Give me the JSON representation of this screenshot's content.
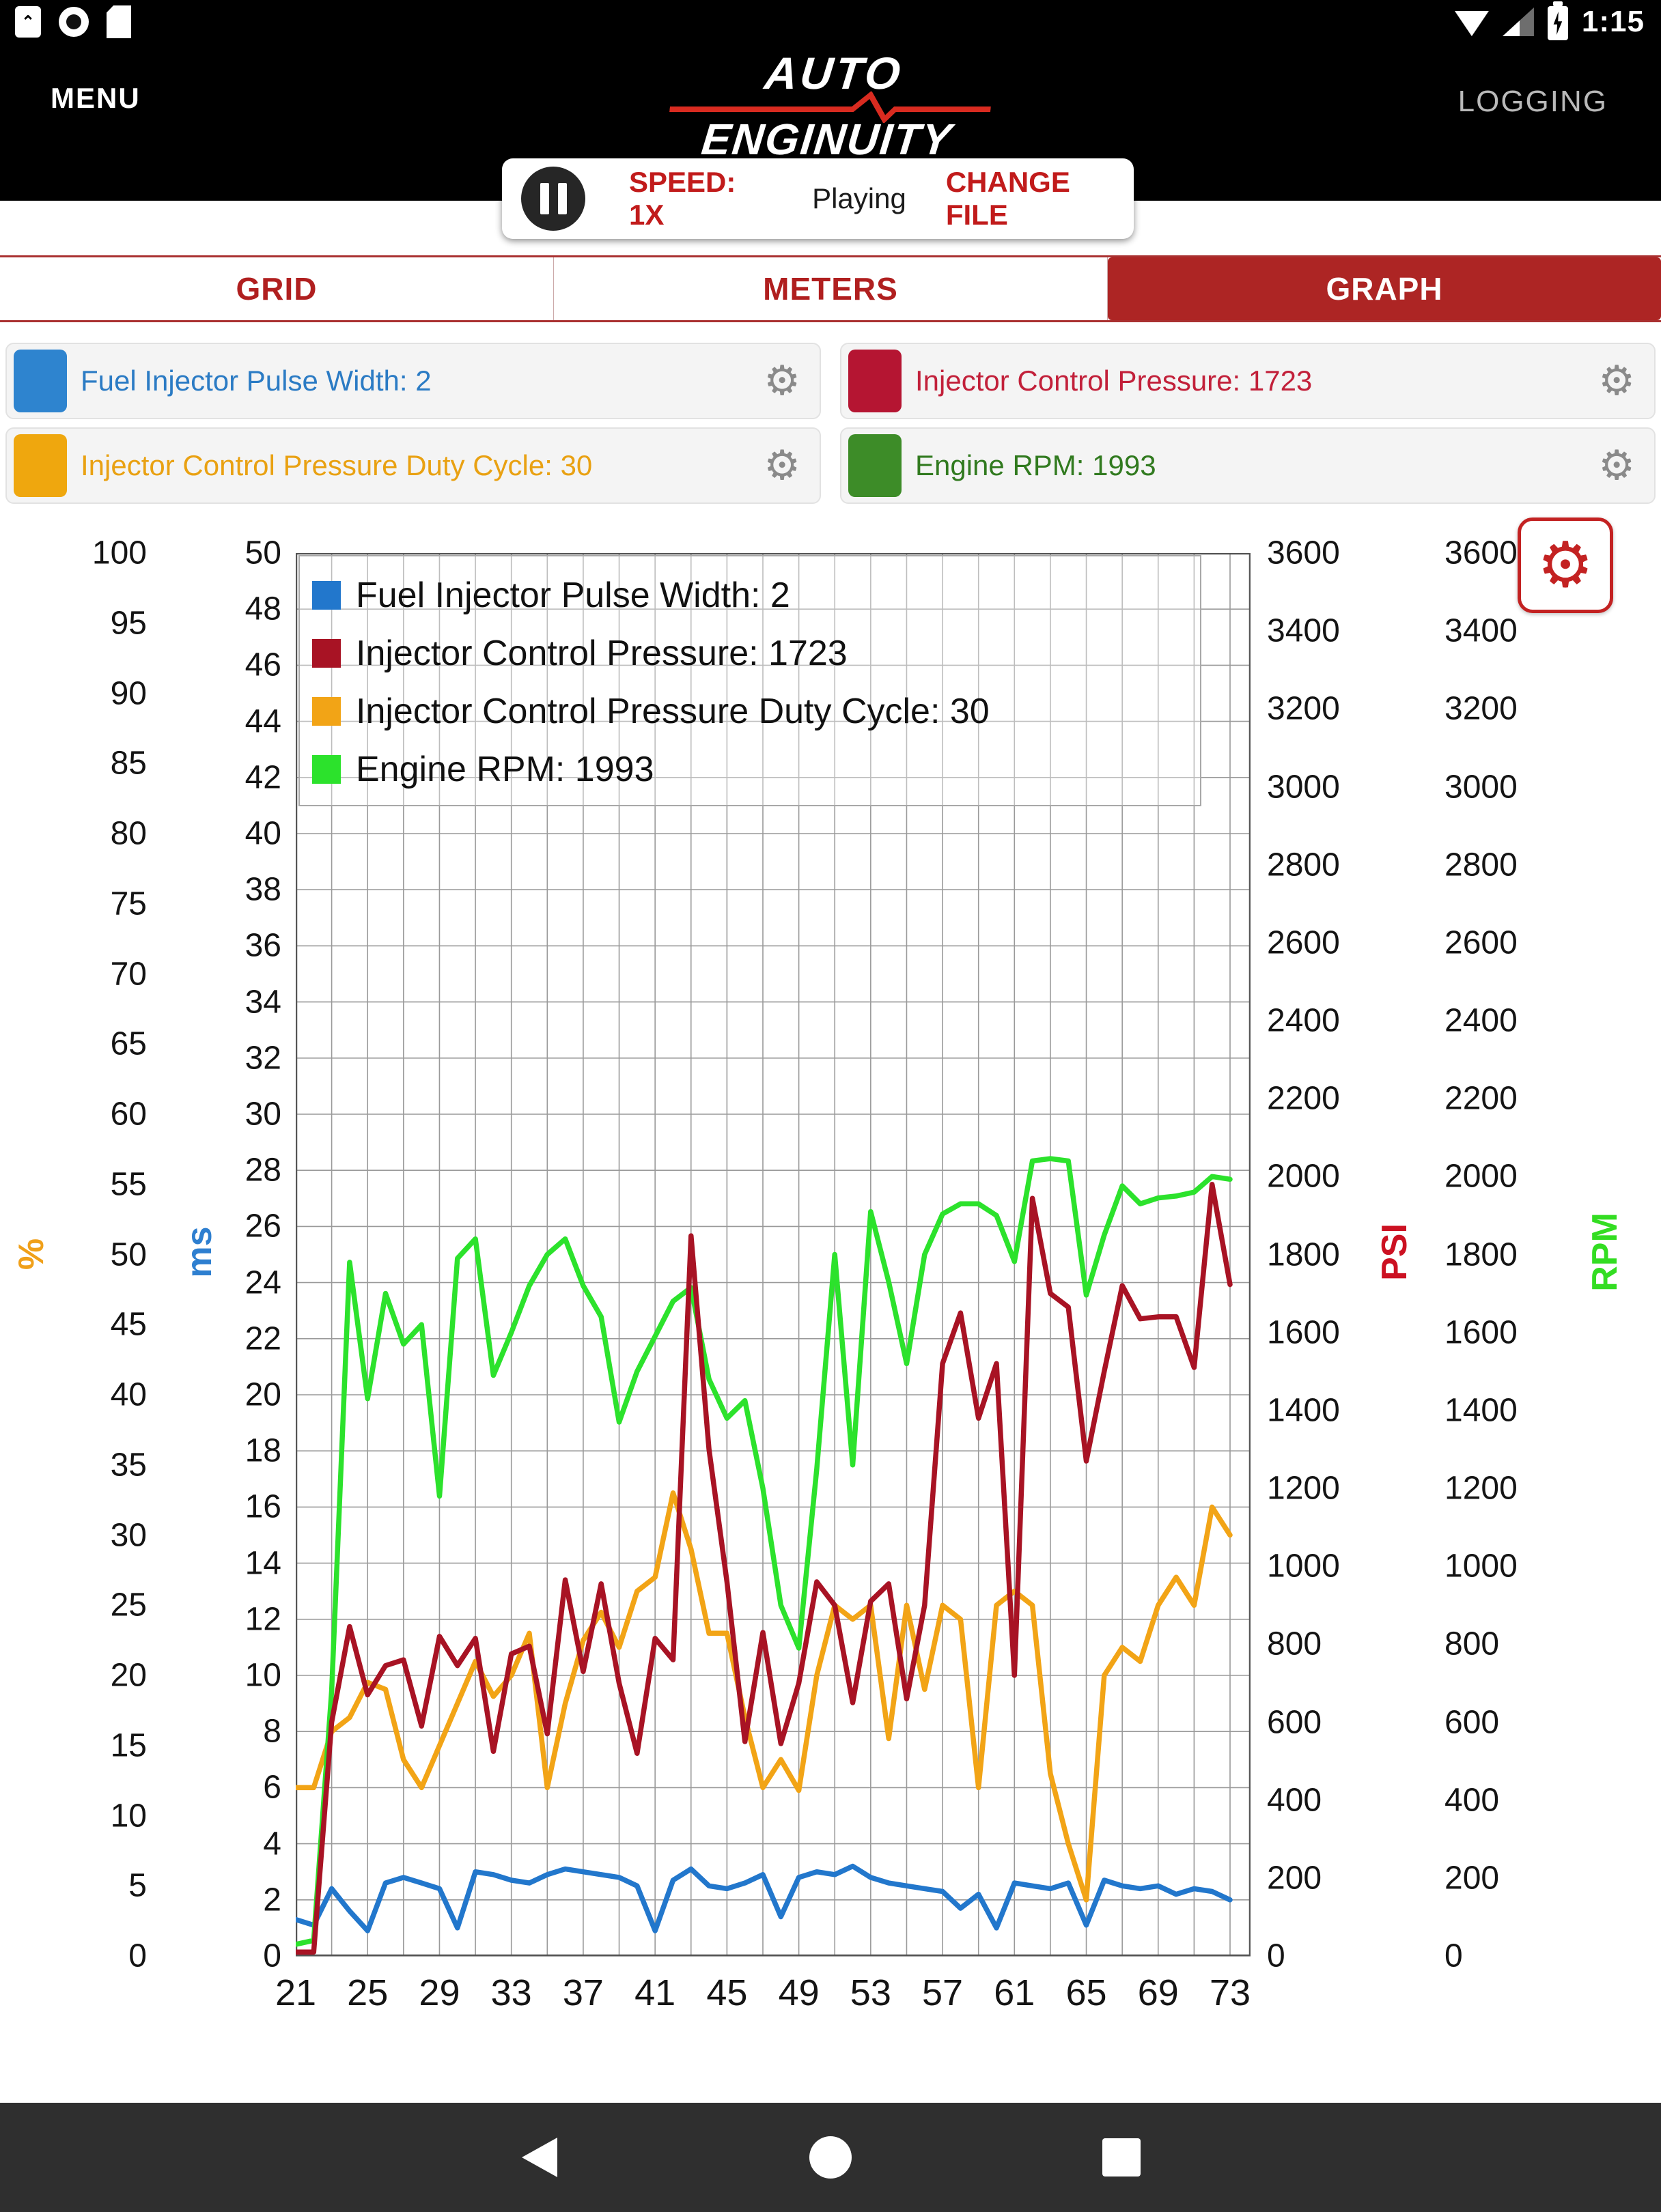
{
  "status_bar": {
    "time": "1:15",
    "left_icons": [
      "box-arrow-icon",
      "circle-notification-icon",
      "sdcard-icon"
    ],
    "right_icons": [
      "wifi-icon",
      "cell-signal-icon",
      "battery-charging-icon"
    ]
  },
  "header": {
    "menu": "MENU",
    "logo_line1": "AUTO",
    "logo_line2": "ENGINUITY",
    "logging": "LOGGING"
  },
  "playback": {
    "speed": "SPEED: 1X",
    "state": "Playing",
    "change_file": "CHANGE FILE",
    "pause_icon": "pause-icon"
  },
  "tabs": [
    {
      "label": "GRID",
      "active": false
    },
    {
      "label": "METERS",
      "active": false
    },
    {
      "label": "GRAPH",
      "active": true
    }
  ],
  "colors": {
    "tab_red": "#ad2524",
    "accent_text_red": "#c11b1b",
    "gear_gray": "#8a8a8a",
    "graph_gear_red": "#c32222",
    "grid_line": "#9a9a9a",
    "plot_frame": "#555555"
  },
  "series": [
    {
      "name": "fuel-injector-pulse-width",
      "label": "Fuel Injector Pulse Width",
      "value": "2",
      "unit": "ms",
      "axis": "ms",
      "line_color": "#2277cc",
      "swatch_color": "#2e84cf",
      "text_color": "#2b7bc4"
    },
    {
      "name": "injector-control-pressure",
      "label": "Injector Control Pressure",
      "value": "1723",
      "unit": "PSI",
      "axis": "psi",
      "line_color": "#a81324",
      "swatch_color": "#b51532",
      "text_color": "#c2203a"
    },
    {
      "name": "injector-control-pressure-duty-cycle",
      "label": "Injector Control Pressure Duty Cycle",
      "value": "30",
      "unit": "%",
      "axis": "pct",
      "line_color": "#f2a416",
      "swatch_color": "#efa70e",
      "text_color": "#e9a112"
    },
    {
      "name": "engine-rpm",
      "label": "Engine RPM",
      "value": "1993",
      "unit": "RPM",
      "axis": "rpm",
      "line_color": "#2ce22c",
      "swatch_color": "#3d8c28",
      "text_color": "#317a1f"
    }
  ],
  "chart_data": {
    "type": "line",
    "grid": true,
    "legend_position": "top-left",
    "x_label": "",
    "x_min": 21,
    "x_max": 73,
    "x_grid_step": 2,
    "x_ticks": [
      21,
      25,
      29,
      33,
      37,
      41,
      45,
      49,
      53,
      57,
      61,
      65,
      69,
      73
    ],
    "axes": {
      "pct": {
        "unit": "%",
        "min": 0,
        "max": 100,
        "tick_step": 5,
        "color": "#f0a01a"
      },
      "ms": {
        "unit": "ms",
        "min": 0,
        "max": 50,
        "tick_step": 2,
        "color": "#2e7fd0"
      },
      "psi": {
        "unit": "PSI",
        "min": 0,
        "max": 3600,
        "tick_step": 200,
        "color": "#cc1122"
      },
      "rpm": {
        "unit": "RPM",
        "min": 0,
        "max": 3600,
        "tick_step": 200,
        "color": "#33dd22"
      }
    },
    "x": [
      21,
      22,
      23,
      24,
      25,
      26,
      27,
      28,
      29,
      30,
      31,
      32,
      33,
      34,
      35,
      36,
      37,
      38,
      39,
      40,
      41,
      42,
      43,
      44,
      45,
      46,
      47,
      48,
      49,
      50,
      51,
      52,
      53,
      54,
      55,
      56,
      57,
      58,
      59,
      60,
      61,
      62,
      63,
      64,
      65,
      66,
      67,
      68,
      69,
      70,
      71,
      72,
      73
    ],
    "series": [
      {
        "name": "Fuel Injector Pulse Width",
        "axis": "ms",
        "values": [
          1.3,
          1.1,
          2.4,
          1.6,
          0.9,
          2.6,
          2.8,
          2.6,
          2.4,
          1.0,
          3.0,
          2.9,
          2.7,
          2.6,
          2.9,
          3.1,
          3.0,
          2.9,
          2.8,
          2.5,
          0.9,
          2.7,
          3.1,
          2.5,
          2.4,
          2.6,
          2.9,
          1.4,
          2.8,
          3.0,
          2.9,
          3.2,
          2.8,
          2.6,
          2.5,
          2.4,
          2.3,
          1.7,
          2.2,
          1.0,
          2.6,
          2.5,
          2.4,
          2.6,
          1.1,
          2.7,
          2.5,
          2.4,
          2.5,
          2.2,
          2.4,
          2.3,
          2.0
        ]
      },
      {
        "name": "Injector Control Pressure Duty Cycle",
        "axis": "pct",
        "values": [
          12,
          12,
          16,
          17,
          19.5,
          19,
          14,
          12,
          15,
          18,
          21,
          18.5,
          20,
          23,
          12,
          18,
          22.5,
          24.5,
          22,
          26,
          27,
          33,
          29,
          23,
          23,
          17,
          12,
          14,
          11.8,
          20,
          25,
          24,
          25,
          15.5,
          25,
          19,
          25,
          24,
          12,
          25,
          26,
          25,
          13,
          8,
          4,
          20,
          22,
          21,
          25,
          27,
          25,
          32,
          30
        ]
      },
      {
        "name": "Engine RPM",
        "axis": "rpm",
        "values": [
          30,
          40,
          680,
          1780,
          1430,
          1700,
          1570,
          1620,
          1180,
          1790,
          1840,
          1490,
          1600,
          1720,
          1800,
          1840,
          1720,
          1640,
          1370,
          1500,
          1590,
          1680,
          1715,
          1480,
          1380,
          1425,
          1200,
          900,
          790,
          1250,
          1800,
          1260,
          1910,
          1730,
          1520,
          1800,
          1904,
          1930,
          1930,
          1900,
          1782,
          2040,
          2046,
          2040,
          1696,
          1850,
          1976,
          1930,
          1945,
          1950,
          1960,
          2000,
          1993
        ]
      },
      {
        "name": "Injector Control Pressure",
        "axis": "psi",
        "values": [
          10,
          10,
          600,
          845,
          670,
          745,
          760,
          590,
          820,
          745,
          815,
          525,
          775,
          795,
          570,
          965,
          730,
          955,
          700,
          520,
          815,
          760,
          1848,
          1300,
          960,
          550,
          830,
          545,
          700,
          960,
          900,
          650,
          910,
          955,
          660,
          900,
          1520,
          1650,
          1380,
          1520,
          720,
          1944,
          1700,
          1665,
          1270,
          1500,
          1720,
          1635,
          1640,
          1640,
          1510,
          1980,
          1723
        ]
      }
    ]
  },
  "nav_bar": {
    "icons": [
      "back-icon",
      "home-icon",
      "recents-icon"
    ]
  }
}
